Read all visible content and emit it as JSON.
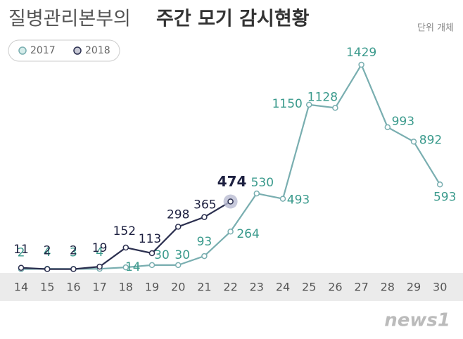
{
  "chart_data": {
    "type": "line",
    "title": "질병관리본부의",
    "title_bold": "주간 모기 감시현황",
    "unit": "단위 개체",
    "watermark": "news1",
    "categories": [
      "14",
      "15",
      "16",
      "17",
      "18",
      "19",
      "20",
      "21",
      "22",
      "23",
      "24",
      "25",
      "26",
      "27",
      "28",
      "29",
      "30"
    ],
    "series": [
      {
        "name": "2017",
        "color": "#79aeb0",
        "label_color": "#3a9a8c",
        "values": [
          2,
          4,
          3,
          4,
          14,
          30,
          30,
          93,
          264,
          530,
          493,
          1150,
          1128,
          1429,
          993,
          892,
          593
        ]
      },
      {
        "name": "2018",
        "color": "#2b2f4f",
        "label_color": "#1d2040",
        "values": [
          11,
          2,
          2,
          19,
          152,
          113,
          298,
          365,
          474,
          null,
          null,
          null,
          null,
          null,
          null,
          null,
          null
        ]
      }
    ],
    "ylim": [
      0,
      1500
    ],
    "legend": "top-left"
  }
}
